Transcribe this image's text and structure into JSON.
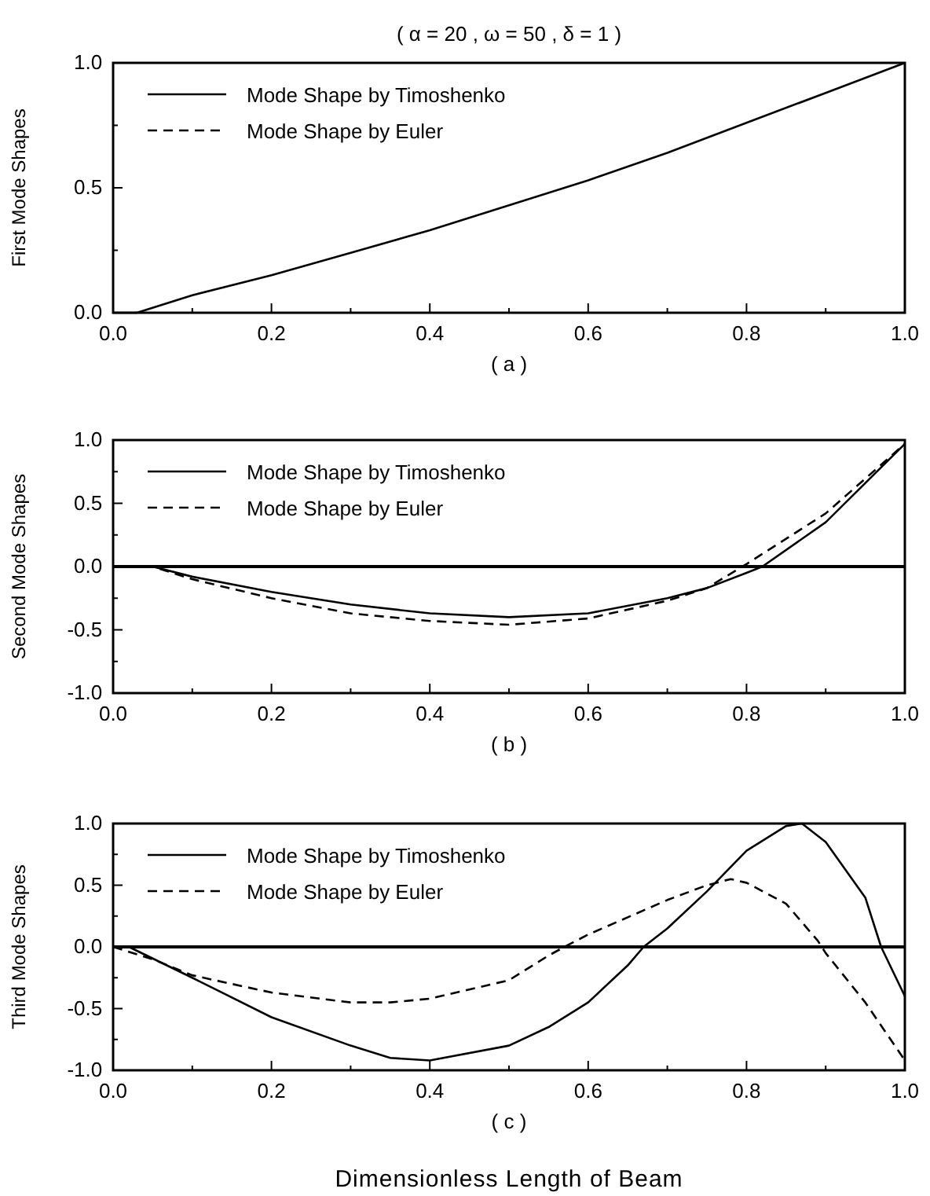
{
  "chart_data": [
    {
      "type": "line",
      "title": "( α = 20 , ω = 50 , δ = 1 )",
      "xlabel": "( a )",
      "ylabel": "First Mode Shapes",
      "legend": "top left",
      "xlim": [
        0,
        1
      ],
      "ylim": [
        0,
        1
      ],
      "xticks": [
        {
          "value": 0,
          "label": "0.0"
        },
        {
          "value": 0.1,
          "label": null
        },
        {
          "value": 0.2,
          "label": "0.2"
        },
        {
          "value": 0.3,
          "label": null
        },
        {
          "value": 0.4,
          "label": "0.4"
        },
        {
          "value": 0.5,
          "label": null
        },
        {
          "value": 0.6,
          "label": "0.6"
        },
        {
          "value": 0.7,
          "label": null
        },
        {
          "value": 0.8,
          "label": "0.8"
        },
        {
          "value": 0.9,
          "label": null
        },
        {
          "value": 1,
          "label": "1.0"
        }
      ],
      "yticks": [
        {
          "value": 0,
          "label": "0.0"
        },
        {
          "value": 0.25,
          "label": null
        },
        {
          "value": 0.5,
          "label": "0.5"
        },
        {
          "value": 0.75,
          "label": null
        },
        {
          "value": 1,
          "label": "1.0"
        }
      ],
      "x": [
        0,
        0.03,
        0.1,
        0.2,
        0.3,
        0.4,
        0.5,
        0.6,
        0.7,
        0.8,
        0.9,
        1
      ],
      "series": [
        {
          "name": "Mode Shape by Timoshenko",
          "color": "#000000",
          "line_style": "solid",
          "values": [
            0,
            0,
            0.07,
            0.15,
            0.24,
            0.33,
            0.43,
            0.53,
            0.64,
            0.76,
            0.88,
            1
          ]
        },
        {
          "name": "Mode Shape by Euler",
          "color": "#000000",
          "line_style": "dashed",
          "values": [
            null,
            null,
            null,
            null,
            null,
            null,
            null,
            null,
            null,
            null,
            null,
            null
          ]
        }
      ]
    },
    {
      "type": "line",
      "xlabel": "( b )",
      "ylabel": "Second Mode Shapes",
      "legend": "top left",
      "xlim": [
        0,
        1
      ],
      "ylim": [
        -1,
        1
      ],
      "xticks": [
        {
          "value": 0,
          "label": "0.0"
        },
        {
          "value": 0.1,
          "label": null
        },
        {
          "value": 0.2,
          "label": "0.2"
        },
        {
          "value": 0.3,
          "label": null
        },
        {
          "value": 0.4,
          "label": "0.4"
        },
        {
          "value": 0.5,
          "label": null
        },
        {
          "value": 0.6,
          "label": "0.6"
        },
        {
          "value": 0.7,
          "label": null
        },
        {
          "value": 0.8,
          "label": "0.8"
        },
        {
          "value": 0.9,
          "label": null
        },
        {
          "value": 1,
          "label": "1.0"
        }
      ],
      "yticks": [
        {
          "value": -1,
          "label": "-1.0"
        },
        {
          "value": -0.75,
          "label": null
        },
        {
          "value": -0.5,
          "label": "-0.5"
        },
        {
          "value": -0.25,
          "label": null
        },
        {
          "value": 0,
          "label": "0.0"
        },
        {
          "value": 0.25,
          "label": null
        },
        {
          "value": 0.5,
          "label": "0.5"
        },
        {
          "value": 0.75,
          "label": null
        },
        {
          "value": 1,
          "label": "1.0"
        }
      ],
      "ref_lines": [
        {
          "axis": "y",
          "value": 0,
          "color": "#000000"
        }
      ],
      "series": [
        {
          "name": "Mode Shape by Timoshenko",
          "color": "#000000",
          "line_style": "solid",
          "x": [
            0,
            0.05,
            0.1,
            0.2,
            0.3,
            0.4,
            0.5,
            0.6,
            0.7,
            0.75,
            0.8,
            0.82,
            0.9,
            1
          ],
          "values": [
            0,
            0,
            -0.08,
            -0.2,
            -0.3,
            -0.37,
            -0.4,
            -0.37,
            -0.25,
            -0.17,
            -0.05,
            0,
            0.35,
            0.97
          ]
        },
        {
          "name": "Mode Shape by Euler",
          "color": "#000000",
          "line_style": "dashed",
          "x": [
            0,
            0.05,
            0.1,
            0.2,
            0.3,
            0.4,
            0.5,
            0.6,
            0.7,
            0.75,
            0.8,
            0.9,
            1
          ],
          "values": [
            0,
            0,
            -0.1,
            -0.25,
            -0.37,
            -0.43,
            -0.46,
            -0.41,
            -0.27,
            -0.17,
            0.02,
            0.42,
            0.97
          ]
        }
      ]
    },
    {
      "type": "line",
      "xlabel": "( c )",
      "ylabel": "Third Mode Shapes",
      "legend": "top left",
      "xlim": [
        0,
        1
      ],
      "ylim": [
        -1,
        1
      ],
      "xticks": [
        {
          "value": 0,
          "label": "0.0"
        },
        {
          "value": 0.1,
          "label": null
        },
        {
          "value": 0.2,
          "label": "0.2"
        },
        {
          "value": 0.3,
          "label": null
        },
        {
          "value": 0.4,
          "label": "0.4"
        },
        {
          "value": 0.5,
          "label": null
        },
        {
          "value": 0.6,
          "label": "0.6"
        },
        {
          "value": 0.7,
          "label": null
        },
        {
          "value": 0.8,
          "label": "0.8"
        },
        {
          "value": 0.9,
          "label": null
        },
        {
          "value": 1,
          "label": "1.0"
        }
      ],
      "yticks": [
        {
          "value": -1,
          "label": "-1.0"
        },
        {
          "value": -0.75,
          "label": null
        },
        {
          "value": -0.5,
          "label": "-0.5"
        },
        {
          "value": -0.25,
          "label": null
        },
        {
          "value": 0,
          "label": "0.0"
        },
        {
          "value": 0.25,
          "label": null
        },
        {
          "value": 0.5,
          "label": "0.5"
        },
        {
          "value": 0.75,
          "label": null
        },
        {
          "value": 1,
          "label": "1.0"
        }
      ],
      "ref_lines": [
        {
          "axis": "y",
          "value": 0,
          "color": "#000000"
        }
      ],
      "annotations": [
        "Dimensionless Length of Beam"
      ],
      "series": [
        {
          "name": "Mode Shape by Timoshenko",
          "color": "#000000",
          "line_style": "solid",
          "x": [
            0,
            0.02,
            0.1,
            0.2,
            0.3,
            0.35,
            0.4,
            0.5,
            0.55,
            0.6,
            0.65,
            0.67,
            0.7,
            0.75,
            0.8,
            0.85,
            0.87,
            0.9,
            0.95,
            0.97,
            1
          ],
          "values": [
            0,
            0,
            -0.25,
            -0.57,
            -0.8,
            -0.9,
            -0.92,
            -0.8,
            -0.65,
            -0.45,
            -0.15,
            0,
            0.15,
            0.45,
            0.78,
            0.98,
            1,
            0.85,
            0.4,
            0,
            -0.4
          ]
        },
        {
          "name": "Mode Shape by Euler",
          "color": "#000000",
          "line_style": "dashed",
          "x": [
            0,
            0.05,
            0.1,
            0.2,
            0.3,
            0.35,
            0.4,
            0.5,
            0.55,
            0.57,
            0.6,
            0.7,
            0.75,
            0.78,
            0.8,
            0.85,
            0.89,
            0.9,
            0.95,
            1
          ],
          "values": [
            0,
            -0.1,
            -0.23,
            -0.37,
            -0.45,
            -0.45,
            -0.42,
            -0.27,
            -0.07,
            0,
            0.1,
            0.38,
            0.5,
            0.55,
            0.52,
            0.35,
            0.05,
            -0.05,
            -0.45,
            -0.92
          ]
        }
      ]
    }
  ]
}
